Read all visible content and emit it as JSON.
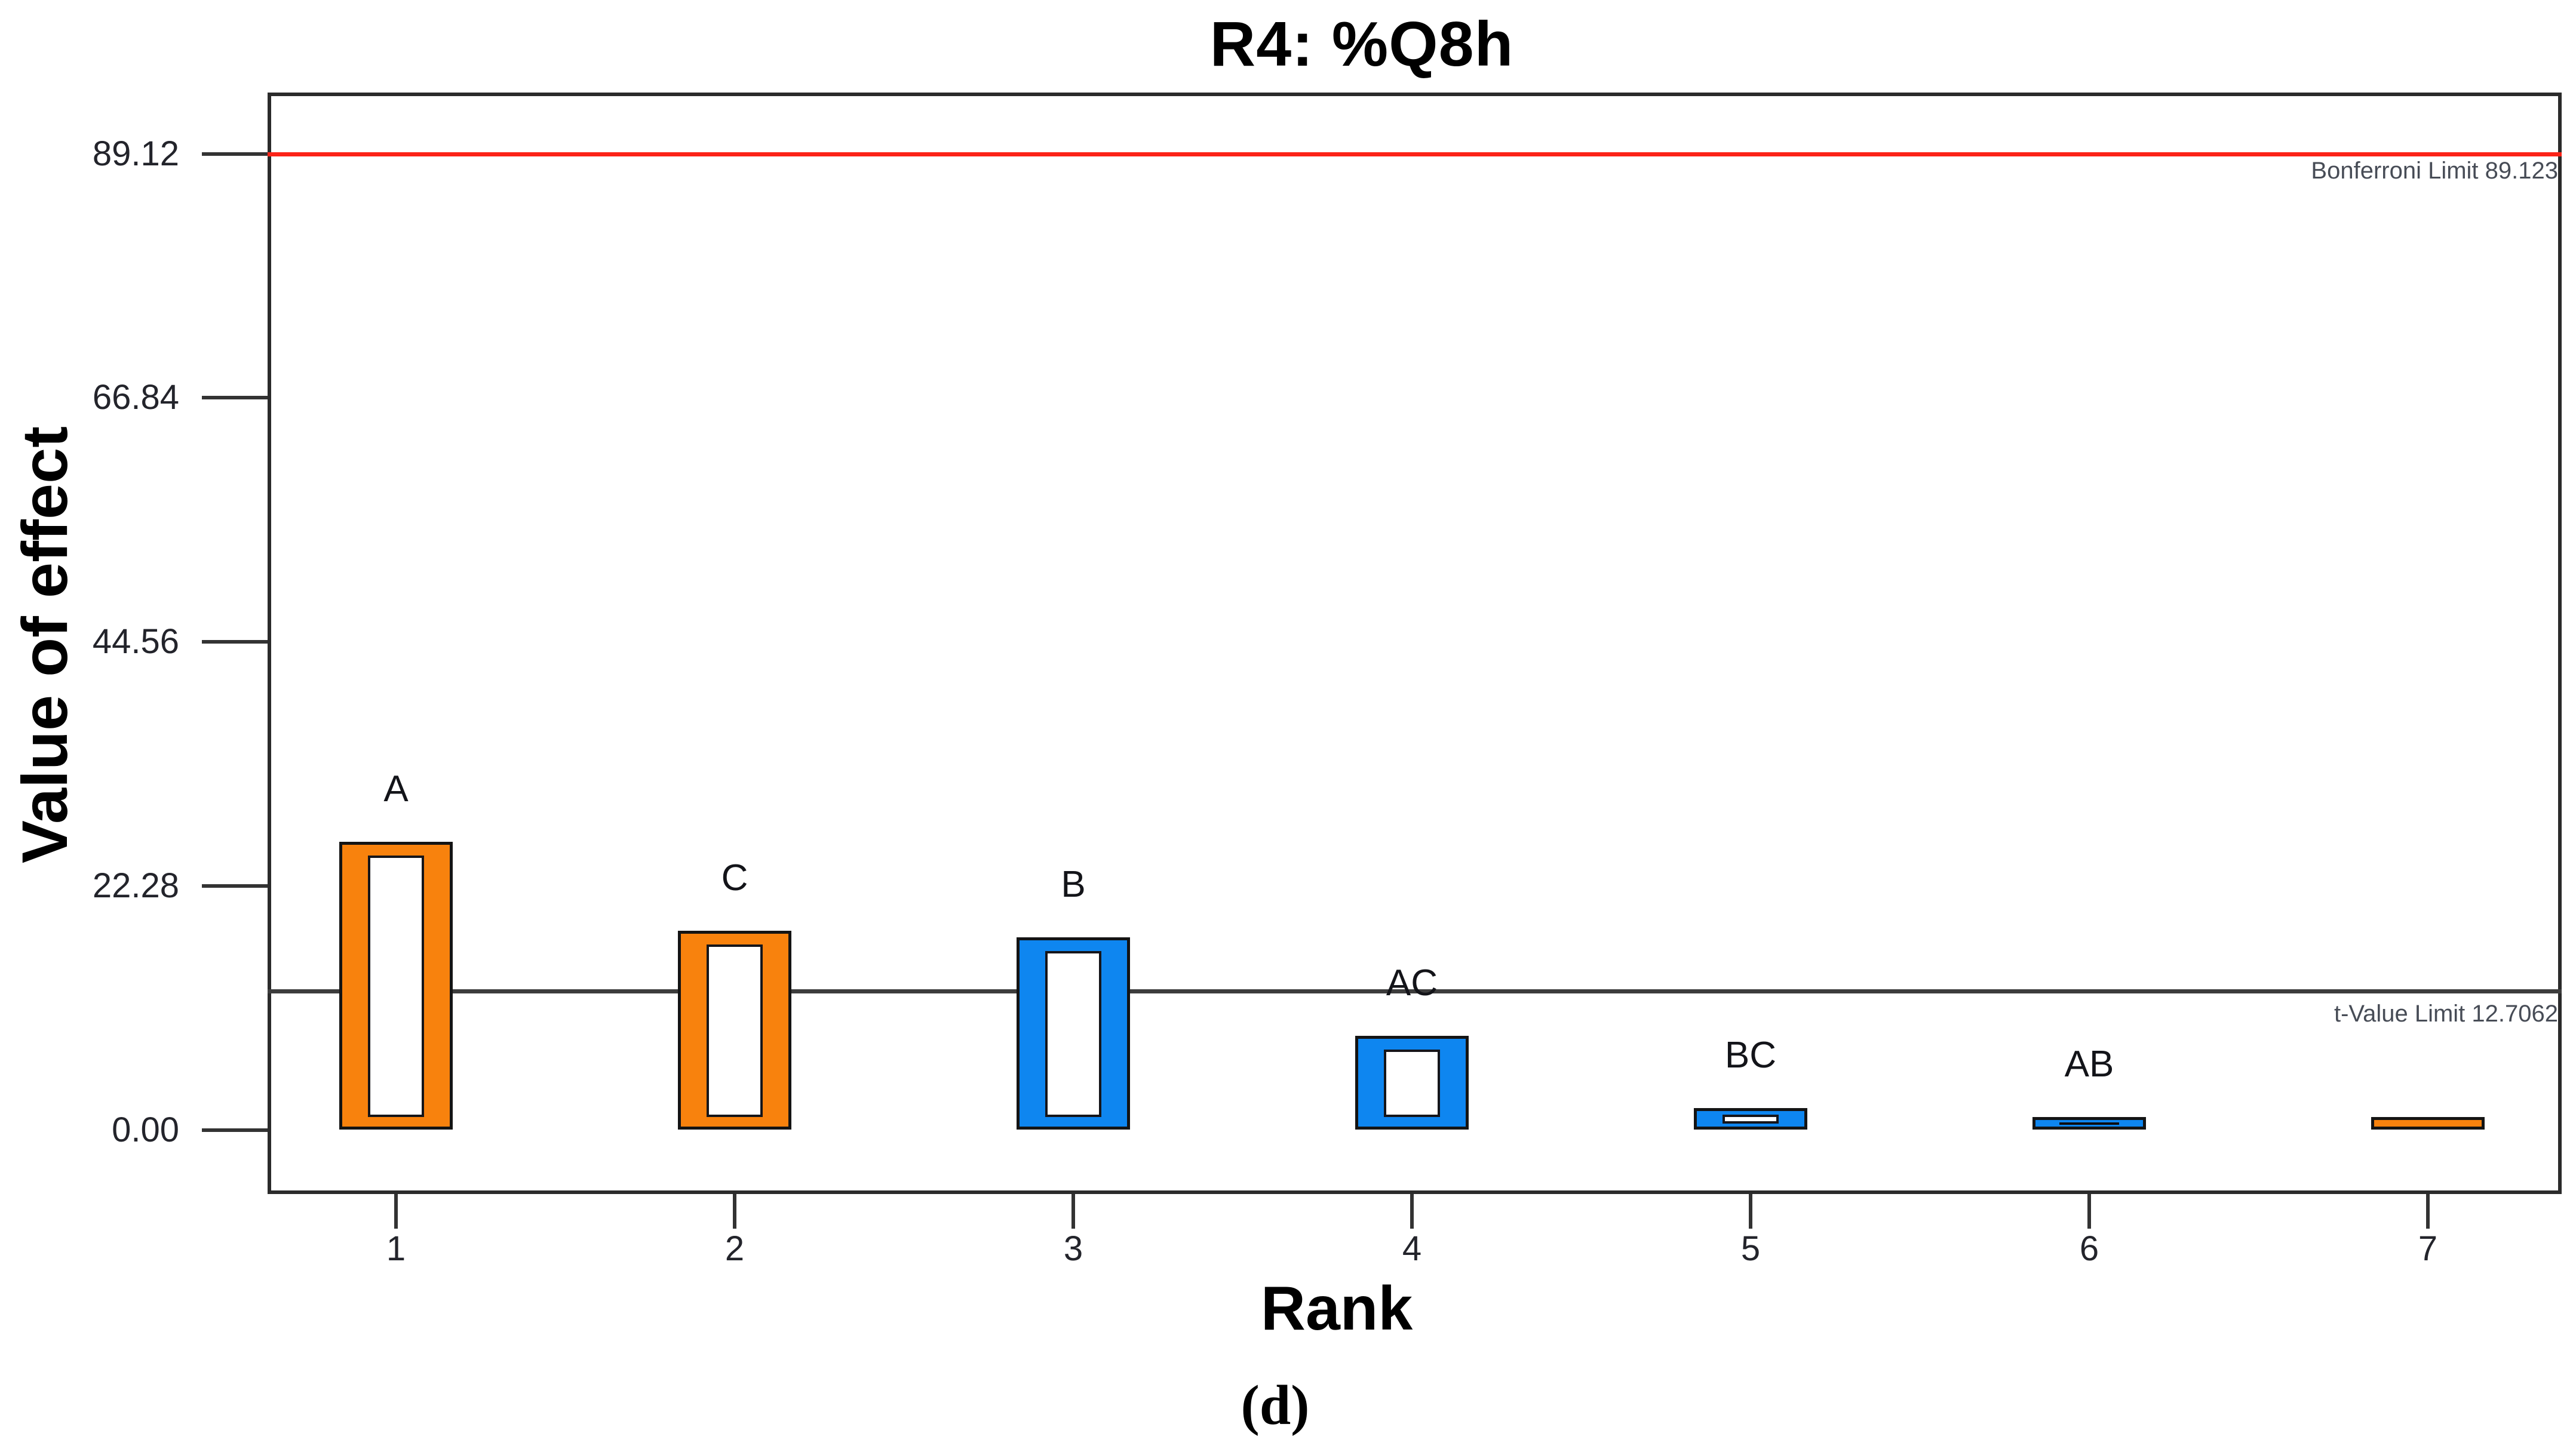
{
  "title": "R4: %Q8h",
  "caption": "(d)",
  "colors": {
    "positive_effect": "#f8820d",
    "negative_effect": "#0e86f0",
    "bonferroni_line": "#fc2318",
    "t_value_line": "#3d3d3d",
    "axis_frame": "#2b2b2b",
    "background": "#ffffff"
  },
  "chart_data": {
    "type": "bar",
    "title": "R4: %Q8h",
    "xlabel": "Rank",
    "ylabel": "Value of effect",
    "categories": [
      "1",
      "2",
      "3",
      "4",
      "5",
      "6",
      "7"
    ],
    "y_ticks": [
      "89.12",
      "66.84",
      "44.56",
      "22.28",
      "0.00"
    ],
    "ylim": [
      -5.8,
      94.7
    ],
    "grid": false,
    "legend": "none",
    "bars": [
      {
        "rank": "1",
        "label": "A",
        "value": 26.3,
        "effect": "positive",
        "inner": "hollow"
      },
      {
        "rank": "2",
        "label": "C",
        "value": 18.2,
        "effect": "positive",
        "inner": "hollow"
      },
      {
        "rank": "3",
        "label": "B",
        "value": 17.6,
        "effect": "negative",
        "inner": "hollow"
      },
      {
        "rank": "4",
        "label": "AC",
        "value": 8.6,
        "effect": "negative",
        "inner": "hollow"
      },
      {
        "rank": "5",
        "label": "BC",
        "value": 2.0,
        "effect": "negative",
        "inner": "hollow"
      },
      {
        "rank": "6",
        "label": "AB",
        "value": 1.2,
        "effect": "negative",
        "inner": "band"
      },
      {
        "rank": "7",
        "label": "",
        "value": 1.2,
        "effect": "positive",
        "inner": "solid"
      }
    ],
    "reference_lines": [
      {
        "name": "bonferroni",
        "label": "Bonferroni Limit 89.123",
        "value": 89.123
      },
      {
        "name": "t-value",
        "label": "t-Value Limit 12.7062",
        "value": 12.7062
      }
    ]
  }
}
